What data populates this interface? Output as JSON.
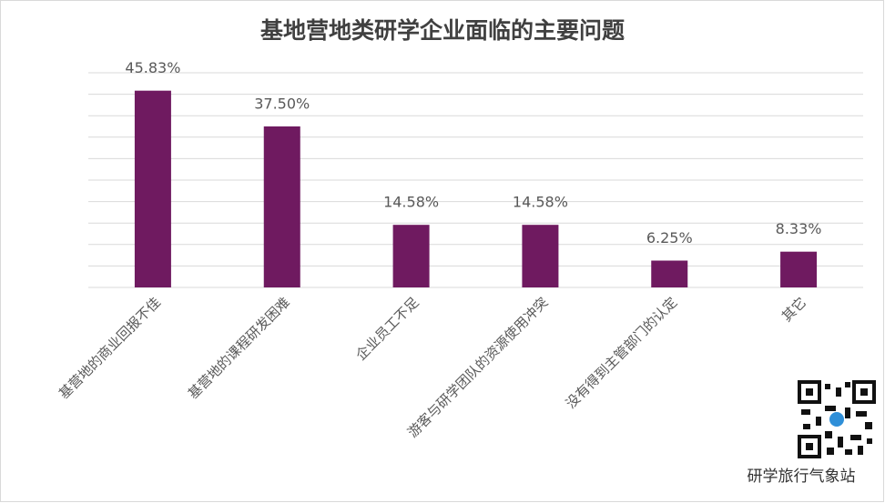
{
  "chart_data": {
    "type": "bar",
    "title": "基地营地类研学企业面临的主要问题",
    "categories": [
      "基营地的商业回报不佳",
      "基营地的课程研发困难",
      "企业员工不足",
      "游客与研学团队的资源使用冲突",
      "没有得到主管部门的认定",
      "其它"
    ],
    "values": [
      45.83,
      37.5,
      14.58,
      14.58,
      6.25,
      8.33
    ],
    "value_labels": [
      "45.83%",
      "37.50%",
      "14.58%",
      "14.58%",
      "6.25%",
      "8.33%"
    ],
    "color": "#6f1a60",
    "ylim": [
      0,
      50
    ],
    "yticks": [
      0,
      5,
      10,
      15,
      20,
      25,
      30,
      35,
      40,
      45,
      50
    ],
    "grid": true,
    "watermark": "研学旅行气象站"
  }
}
